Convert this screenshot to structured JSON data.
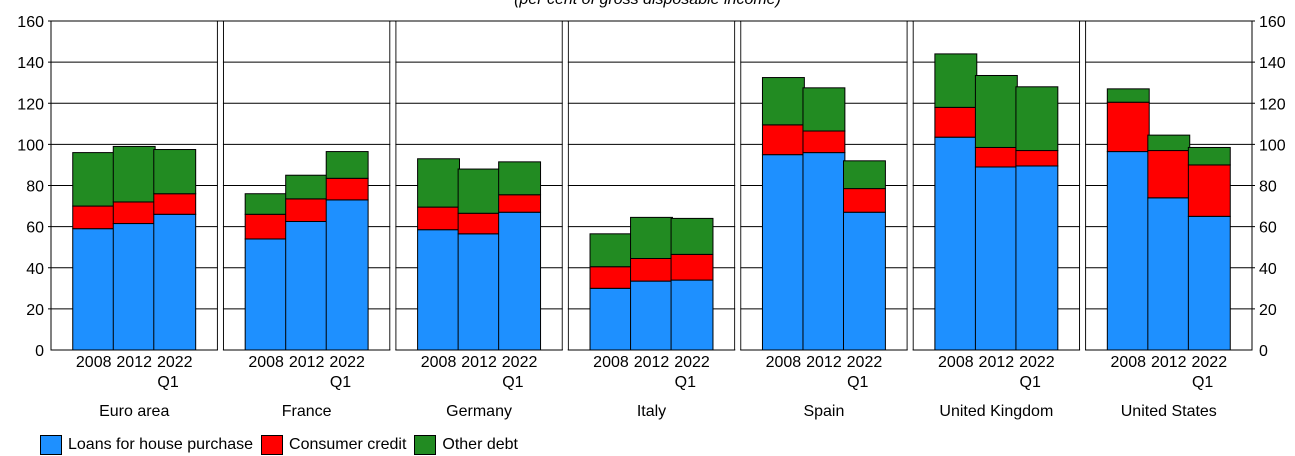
{
  "chart_data": {
    "type": "bar",
    "stacked": true,
    "subtitle": "(per cent of gross disposable income)",
    "ylim": [
      0,
      160
    ],
    "y_ticks": [
      "0",
      "20",
      "40",
      "60",
      "80",
      "100",
      "120",
      "140",
      "160"
    ],
    "grid": true,
    "legend_position": "bottom-left",
    "bar_labels": [
      [
        "2008",
        ""
      ],
      [
        "2012",
        ""
      ],
      [
        "2022",
        "Q1"
      ]
    ],
    "series": [
      {
        "name": "Loans for house purchase",
        "color": "#1E90FF"
      },
      {
        "name": "Consumer credit",
        "color": "#FF0000"
      },
      {
        "name": "Other debt",
        "color": "#228B22"
      }
    ],
    "groups": [
      {
        "name": "Euro area",
        "values": [
          [
            59,
            11,
            26
          ],
          [
            61.5,
            10.5,
            27
          ],
          [
            66,
            10,
            21.5
          ]
        ]
      },
      {
        "name": "France",
        "values": [
          [
            54,
            12,
            10
          ],
          [
            62.5,
            11,
            11.5
          ],
          [
            73,
            10.5,
            13
          ]
        ]
      },
      {
        "name": "Germany",
        "values": [
          [
            58.5,
            11,
            23.5
          ],
          [
            56.5,
            10,
            21.5
          ],
          [
            67,
            8.5,
            16
          ]
        ]
      },
      {
        "name": "Italy",
        "values": [
          [
            30,
            10.5,
            16
          ],
          [
            33.5,
            11,
            20
          ],
          [
            34,
            12.5,
            17.5
          ]
        ]
      },
      {
        "name": "Spain",
        "values": [
          [
            95,
            14.5,
            23
          ],
          [
            96,
            10.5,
            21
          ],
          [
            67,
            11.5,
            13.5
          ]
        ]
      },
      {
        "name": "United Kingdom",
        "values": [
          [
            103.5,
            14.5,
            26
          ],
          [
            89,
            9.5,
            35
          ],
          [
            89.5,
            7.5,
            31
          ]
        ]
      },
      {
        "name": "United States",
        "values": [
          [
            96.5,
            24,
            6.5
          ],
          [
            74,
            23,
            7.5
          ],
          [
            65,
            25,
            8.5
          ]
        ]
      }
    ]
  }
}
